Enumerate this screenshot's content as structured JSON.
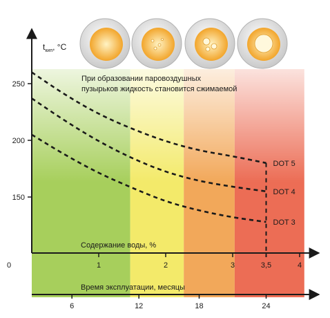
{
  "chart_data": {
    "type": "line",
    "ylabel_main": "t",
    "ylabel_sub": "кип",
    "ylabel_unit": ", °C",
    "yticks": [
      150,
      200,
      250
    ],
    "ylim": [
      95,
      300
    ],
    "xlabel_water": "Содержание воды, %",
    "xticks_water": [
      "0",
      "1",
      "2",
      "3",
      "3,5",
      "4"
    ],
    "xlabel_time": "Время эксплуатации, месяцы",
    "xticks_time": [
      "6",
      "12",
      "18",
      "24"
    ],
    "annotation": "При образовании паровоздушных пузырьков жидкость становится сжимаемой",
    "zones_colors": [
      "#a7cf5c",
      "#f3ea6a",
      "#f2a85a",
      "#ec6d55"
    ],
    "series": [
      {
        "name": "DOT 5",
        "x": [
          0,
          0.5,
          1,
          1.5,
          2,
          2.5,
          3,
          3.5
        ],
        "y": [
          260,
          240,
          223,
          210,
          199,
          191,
          186,
          180
        ]
      },
      {
        "name": "DOT 4",
        "x": [
          0,
          0.5,
          1,
          1.5,
          2,
          2.5,
          3,
          3.5
        ],
        "y": [
          237,
          217,
          199,
          184,
          172,
          164,
          159,
          155
        ]
      },
      {
        "name": "DOT 3",
        "x": [
          0,
          0.5,
          1,
          1.5,
          2,
          2.5,
          3,
          3.5
        ],
        "y": [
          205,
          187,
          171,
          158,
          146,
          138,
          132,
          128
        ]
      }
    ]
  }
}
